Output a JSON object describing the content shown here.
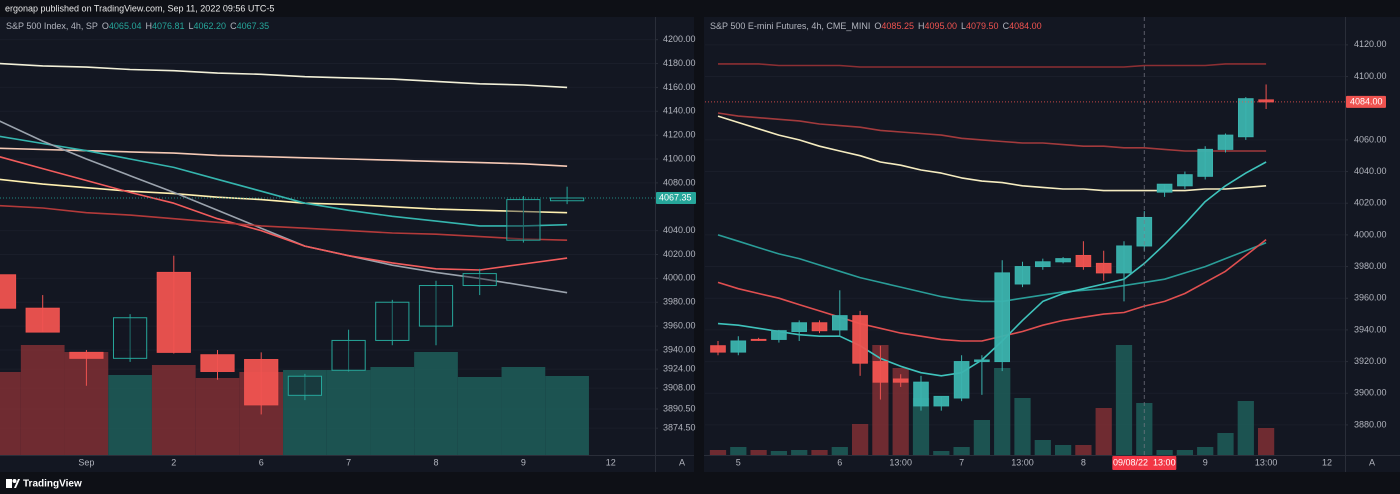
{
  "header": {
    "text": "ergonap published on TradingView.com, Sep 11, 2022 09:56 UTC-5"
  },
  "footer": {
    "brand": "TradingView"
  },
  "chart_data": [
    {
      "type": "candlestick",
      "title": "S&P 500 Index, 4h, SP",
      "ohlc_prefixes": [
        "O",
        "H",
        "L",
        "C"
      ],
      "ohlc_value_labels": [
        "4065.04",
        "4076.81",
        "4062.20",
        "4067.35"
      ],
      "last_price_label": "4067.35",
      "scale_mode_label": "A",
      "categories": [
        null,
        null,
        "Sep",
        null,
        "2",
        null,
        "6",
        null,
        "7",
        null,
        "8",
        null,
        "9",
        null,
        "12"
      ],
      "open": [
        4003,
        3975,
        3938,
        3933,
        4005,
        3936,
        3932,
        3902,
        3923,
        3948,
        3960,
        3994,
        4032,
        4065.04,
        null
      ],
      "high": [
        4008,
        3986,
        3940,
        3970,
        4019,
        3940,
        3938,
        3920,
        3957,
        3982,
        3998,
        4008,
        4069,
        4076.81,
        null
      ],
      "low": [
        3973,
        3955,
        3910,
        3930,
        3937,
        3915,
        3886,
        3898,
        3922,
        3944,
        3944,
        3986,
        4030,
        4062.2,
        null
      ],
      "close": [
        3975,
        3955,
        3933,
        3967,
        3938,
        3922,
        3894,
        3918,
        3948,
        3980,
        3994,
        4004,
        4066,
        4067.35,
        null
      ],
      "volume": [
        83,
        110,
        103,
        80,
        90,
        77,
        83,
        85,
        85,
        88,
        103,
        78,
        88,
        79,
        null
      ],
      "up_color": "#26a69a",
      "down_color": "#ef5350",
      "hollow_up": true,
      "volume_up_color": "#1e5a56",
      "volume_down_color": "#7a2e33",
      "series": [
        {
          "color": "#f2f0d8",
          "values": [
            4180,
            4178,
            4177,
            4175,
            4174,
            4172,
            4171,
            4169,
            4168,
            4167,
            4165,
            4163,
            4162,
            4160,
            null
          ]
        },
        {
          "color": "#f5c9b5",
          "values": [
            4109,
            4108,
            4107,
            4106,
            4105,
            4103,
            4102,
            4101,
            4100,
            4099,
            4098,
            4097,
            4096,
            4094,
            null
          ]
        },
        {
          "color": "#fff0b0",
          "values": [
            4083,
            4079,
            4076,
            4073,
            4071,
            4068,
            4066,
            4063,
            4062,
            4060,
            4058,
            4057,
            4056,
            4055,
            null
          ]
        },
        {
          "color": "#35b5ae",
          "values": [
            4119,
            4113,
            4107,
            4100,
            4093,
            4083,
            4073,
            4063,
            4057,
            4052,
            4048,
            4044,
            4044,
            4045,
            null
          ]
        },
        {
          "color": "#9ba3ad",
          "values": [
            4132,
            4115,
            4100,
            4086,
            4072,
            4057,
            4042,
            4027,
            4019,
            4011,
            4005,
            4000,
            3994,
            3988,
            null
          ]
        },
        {
          "color": "#f25c5c",
          "values": [
            4102,
            4092,
            4082,
            4072,
            4063,
            4050,
            4040,
            4027,
            4019,
            4013,
            4008,
            4007,
            4012,
            4017,
            null
          ]
        },
        {
          "color": "#b33a3a",
          "values": [
            4061,
            4059,
            4055,
            4053,
            4050,
            4047,
            4044,
            4042,
            4040,
            4038,
            4037,
            4035,
            4033,
            4032,
            null
          ]
        }
      ],
      "ylim": [
        3852,
        4219
      ],
      "yticks": [
        {
          "value": 4200,
          "label": "4200.00"
        },
        {
          "value": 4180,
          "label": "4180.00"
        },
        {
          "value": 4160,
          "label": "4160.00"
        },
        {
          "value": 4140,
          "label": "4140.00"
        },
        {
          "value": 4120,
          "label": "4120.00"
        },
        {
          "value": 4100,
          "label": "4100.00"
        },
        {
          "value": 4080,
          "label": "4080.00"
        },
        {
          "value": 4040,
          "label": "4040.00"
        },
        {
          "value": 4020,
          "label": "4020.00"
        },
        {
          "value": 4000,
          "label": "4000.00"
        },
        {
          "value": 3980,
          "label": "3980.00"
        },
        {
          "value": 3960,
          "label": "3960.00"
        },
        {
          "value": 3940,
          "label": "3940.00"
        },
        {
          "value": 3924,
          "label": "3924.00"
        },
        {
          "value": 3908,
          "label": "3908.00"
        },
        {
          "value": 3890.5,
          "label": "3890.50"
        },
        {
          "value": 3874.5,
          "label": "3874.50"
        }
      ],
      "grid": true
    },
    {
      "type": "candlestick",
      "title": "S&P 500 E-mini Futures, 4h, CME_MINI",
      "ohlc_prefixes": [
        "O",
        "H",
        "L",
        "C"
      ],
      "ohlc_value_labels": [
        "4085.25",
        "4095.00",
        "4079.50",
        "4084.00"
      ],
      "last_price_label": "4084.00",
      "scale_mode_label": "A",
      "crosshair_label": "09/08/22  13:00",
      "categories": [
        null,
        "5",
        null,
        null,
        null,
        null,
        "6",
        null,
        null,
        "13:00",
        null,
        null,
        "7",
        null,
        null,
        "13:00",
        null,
        null,
        "8",
        null,
        null,
        null,
        null,
        null,
        "9",
        null,
        null,
        "13:00",
        null,
        null,
        "12"
      ],
      "open": [
        3930,
        3926,
        3934,
        3934,
        3939,
        3944.5,
        3940,
        3949,
        3920,
        3909,
        3892,
        3892,
        3897,
        3920,
        3920,
        3969,
        3980,
        3983,
        3987,
        3982,
        3976,
        3993,
        4027,
        4031,
        4037,
        4054,
        4062,
        4085.25,
        null,
        null,
        null
      ],
      "high": [
        3933,
        3936,
        3935,
        3940,
        3946,
        3946,
        3965,
        3952,
        3930,
        3912,
        3911,
        3898,
        3924,
        3924,
        3984,
        3983,
        3985,
        3986,
        3996,
        3990,
        3996,
        4015,
        4032,
        4040,
        4056,
        4064,
        4087,
        4095,
        null,
        null,
        null
      ],
      "low": [
        3924,
        3924,
        3933,
        3932,
        3933,
        3938,
        3936,
        3911,
        3896,
        3904,
        3889,
        3889,
        3895,
        3899,
        3914,
        3967,
        3978,
        3982,
        3978,
        3971,
        3958,
        3990,
        4024,
        4029,
        4035,
        4052,
        4060,
        4079.5,
        null,
        null,
        null
      ],
      "close": [
        3926,
        3933,
        3933.5,
        3939.5,
        3944.5,
        3939.5,
        3949,
        3919,
        3907,
        3907,
        3907,
        3898,
        3920,
        3921,
        3976,
        3980,
        3983,
        3985,
        3980,
        3976,
        3993,
        4011,
        4032,
        4038,
        4054,
        4063,
        4086,
        4084,
        null,
        null,
        null
      ],
      "volume": [
        5,
        8,
        5,
        4,
        5,
        5,
        8,
        31,
        110,
        87,
        57,
        4,
        8,
        35,
        87,
        57,
        15,
        10,
        10,
        47,
        110,
        52,
        5,
        5,
        8,
        22,
        54,
        27,
        null,
        null,
        null
      ],
      "up_color": "#3bb3ae",
      "down_color": "#ef5350",
      "hollow_up": false,
      "volume_up_color": "#1e5a56",
      "volume_down_color": "#7a2e33",
      "series": [
        {
          "color": "#8c2f33",
          "values": [
            4108,
            4108,
            4108,
            4107,
            4107,
            4107,
            4107,
            4106,
            4106,
            4106,
            4106,
            4106,
            4106,
            4106,
            4106,
            4106,
            4106,
            4106,
            4106,
            4106,
            4106,
            4107,
            4107,
            4107,
            4107,
            4108,
            4108,
            4108,
            null,
            null,
            null
          ]
        },
        {
          "color": "#a23a3c",
          "values": [
            4077,
            4075,
            4074,
            4073,
            4072,
            4070,
            4069,
            4068,
            4066,
            4065,
            4064,
            4063,
            4061,
            4060,
            4059,
            4058,
            4058,
            4057,
            4056,
            4056,
            4055,
            4055,
            4054,
            4053,
            4053,
            4053,
            4053,
            4053,
            null,
            null,
            null
          ]
        },
        {
          "color": "#f5ecc0",
          "values": [
            4075,
            4071,
            4067,
            4063,
            4060,
            4056,
            4053,
            4050,
            4046,
            4044,
            4041,
            4039,
            4036,
            4034,
            4033,
            4031,
            4030,
            4029,
            4029,
            4028,
            4028,
            4028,
            4028,
            4028,
            4029,
            4029,
            4030,
            4031,
            null,
            null,
            null
          ]
        },
        {
          "color": "#2a9d98",
          "values": [
            4000,
            3996,
            3992,
            3988,
            3985,
            3981,
            3977,
            3973,
            3970,
            3967,
            3964,
            3961,
            3959,
            3958,
            3958,
            3960,
            3962,
            3964,
            3965,
            3966,
            3968,
            3970,
            3972,
            3976,
            3980,
            3985,
            3990,
            3995,
            null,
            null,
            null
          ]
        },
        {
          "color": "#e04f50",
          "values": [
            3970,
            3966,
            3963,
            3960,
            3956,
            3952,
            3948,
            3944,
            3941,
            3938,
            3936,
            3934,
            3933,
            3933,
            3936,
            3939,
            3943,
            3946,
            3948,
            3950,
            3951,
            3955,
            3958,
            3963,
            3970,
            3977,
            3987,
            3997,
            null,
            null,
            null
          ]
        },
        {
          "color": "#3fc3bc",
          "values": [
            3944,
            3943,
            3941,
            3939,
            3937,
            3936,
            3936,
            3930,
            3922,
            3917,
            3913,
            3911,
            3913,
            3921,
            3933,
            3946,
            3958,
            3963,
            3966,
            3969,
            3972,
            3982,
            3994,
            4007,
            4021,
            4031,
            4039,
            4046,
            null,
            null,
            null
          ]
        }
      ],
      "ylim": [
        3861,
        4137.6
      ],
      "yticks": [
        {
          "value": 4120,
          "label": "4120.00"
        },
        {
          "value": 4100,
          "label": "4100.00"
        },
        {
          "value": 4060,
          "label": "4060.00"
        },
        {
          "value": 4040,
          "label": "4040.00"
        },
        {
          "value": 4020,
          "label": "4020.00"
        },
        {
          "value": 4000,
          "label": "4000.00"
        },
        {
          "value": 3980,
          "label": "3980.00"
        },
        {
          "value": 3960,
          "label": "3960.00"
        },
        {
          "value": 3940,
          "label": "3940.00"
        },
        {
          "value": 3920,
          "label": "3920.00"
        },
        {
          "value": 3900,
          "label": "3900.00"
        },
        {
          "value": 3880,
          "label": "3880.00"
        }
      ],
      "grid": true
    }
  ]
}
